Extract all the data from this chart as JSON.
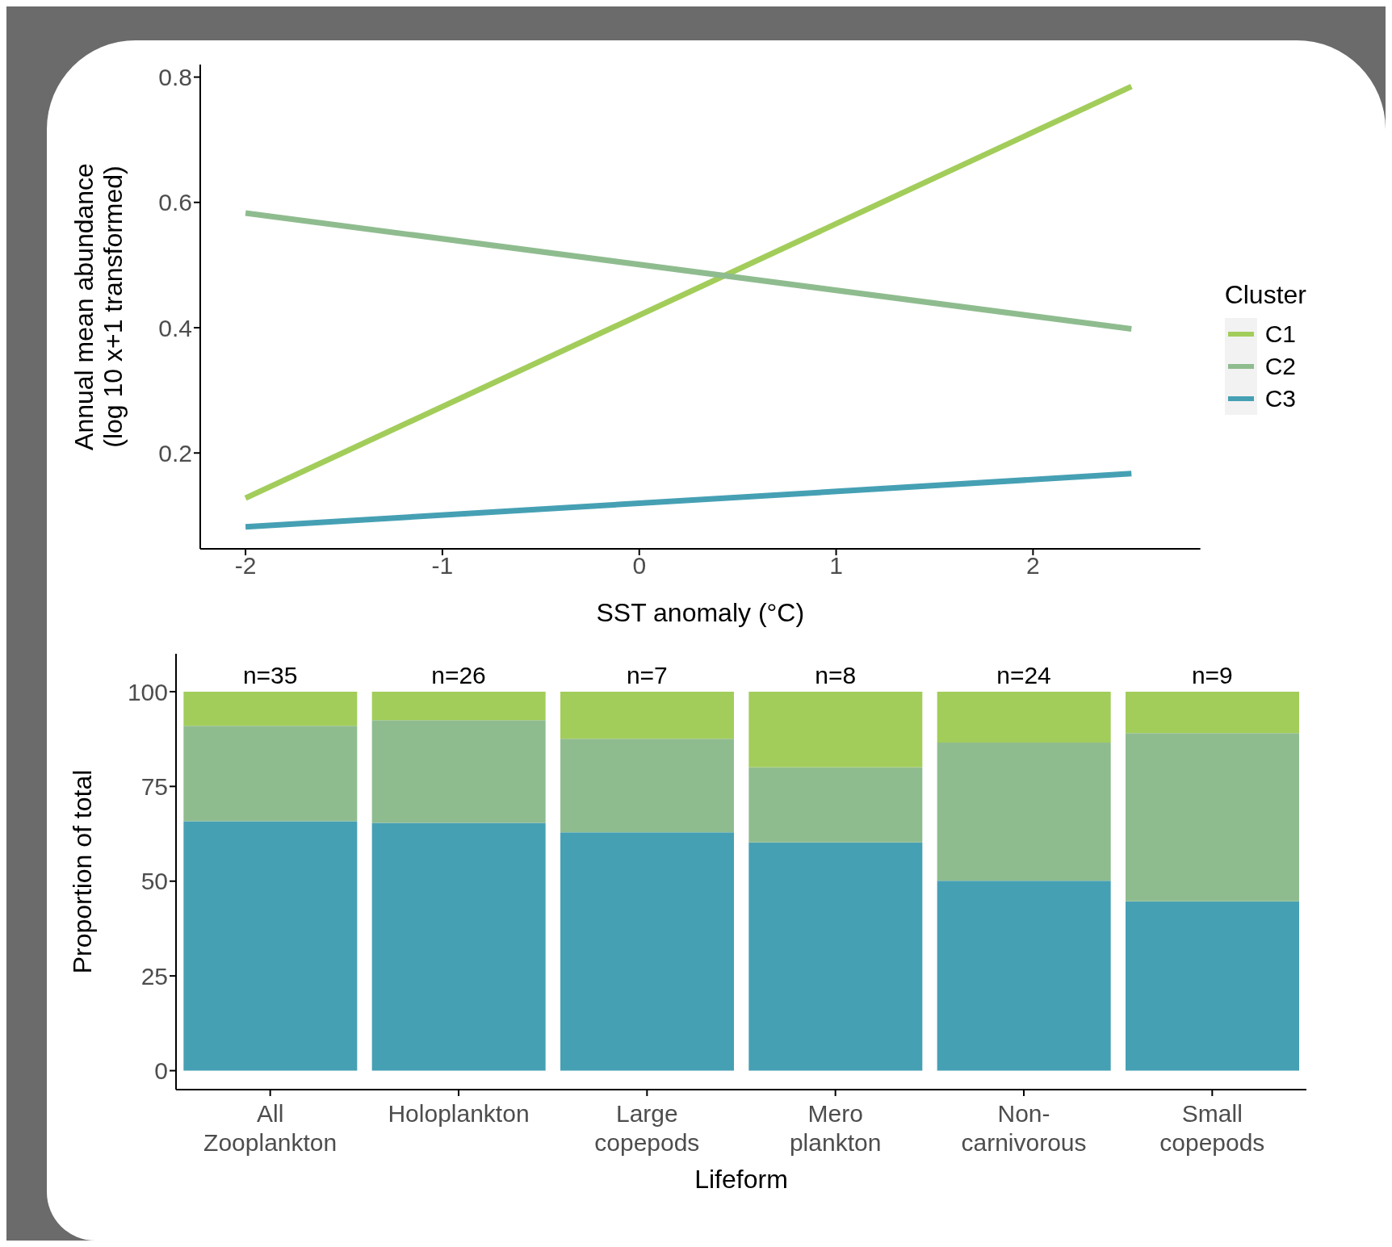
{
  "chart_data": [
    {
      "type": "line",
      "xlabel": "SST anomaly (°C)",
      "ylabel": "Annual mean abundance\n(log 10 x+1 transformed)",
      "legend_title": "Cluster",
      "legend": "right",
      "x": [
        -2,
        2.5
      ],
      "series": [
        {
          "name": "C1",
          "color": "#a2cd5a",
          "values": [
            0.128,
            0.785
          ]
        },
        {
          "name": "C2",
          "color": "#8fbc8f",
          "values": [
            0.583,
            0.398
          ]
        },
        {
          "name": "C3",
          "color": "#46a0b4",
          "values": [
            0.082,
            0.167
          ]
        }
      ],
      "xlim": [
        -2.23,
        2.85
      ],
      "xticks": [
        -2,
        -1,
        0,
        1,
        2
      ],
      "ylim": [
        0.047,
        0.82
      ],
      "yticks": [
        0.2,
        0.4,
        0.6,
        0.8
      ]
    },
    {
      "type": "bar",
      "stacked": true,
      "xlabel": "Lifeform",
      "ylabel": "Proportion of total",
      "categories": [
        "All\nZooplankton",
        "Holoplankton",
        "Large\ncopepods",
        "Mero\nplankton",
        "Non-\ncarnivorous",
        "Small\ncopepods"
      ],
      "series": [
        {
          "color": "#46a0b4",
          "values": [
            65.8,
            65.4,
            62.9,
            60.2,
            50.1,
            44.7
          ]
        },
        {
          "color": "#8fbc8f",
          "values": [
            25.2,
            27.1,
            24.7,
            19.9,
            36.5,
            44.4
          ]
        },
        {
          "color": "#a2cd5a",
          "values": [
            9.0,
            7.5,
            12.4,
            19.9,
            13.4,
            10.9
          ]
        }
      ],
      "annotations": [
        {
          "text": "n=35",
          "x": "All\nZooplankton",
          "y": 100
        },
        {
          "text": "n=26",
          "x": "Holoplankton",
          "y": 100
        },
        {
          "text": "n=7",
          "x": "Large\ncopepods",
          "y": 100
        },
        {
          "text": "n=8",
          "x": "Mero\nplankton",
          "y": 100
        },
        {
          "text": "n=24",
          "x": "Non-\ncarnivorous",
          "y": 100
        },
        {
          "text": "n=9",
          "x": "Small\ncopepods",
          "y": 100
        }
      ],
      "ylim": [
        -5,
        110
      ],
      "yticks": [
        0,
        25,
        50,
        75,
        100
      ]
    }
  ]
}
